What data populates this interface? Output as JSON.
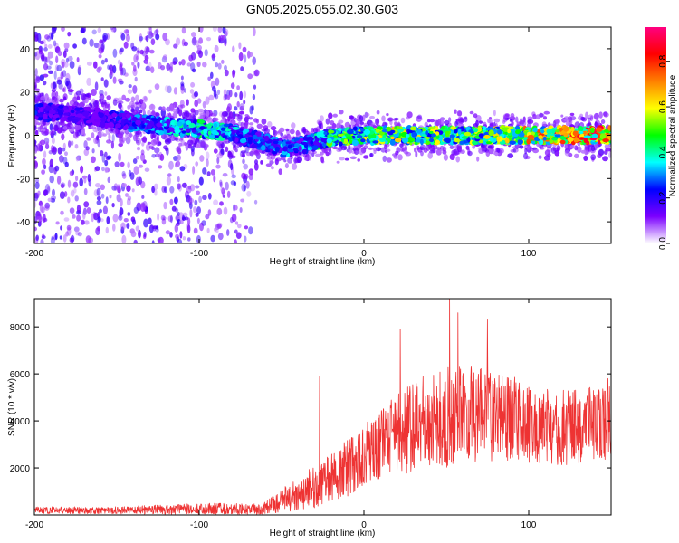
{
  "title": "GN05.2025.055.02.30.G03",
  "chart_data": [
    {
      "type": "heatmap",
      "id": "spectrogram",
      "title": "GN05.2025.055.02.30.G03",
      "xlabel": "Height of straight line (km)",
      "ylabel": "Frequency (Hz)",
      "xlim": [
        -200,
        150
      ],
      "ylim": [
        -50,
        50
      ],
      "xticks": [
        -200,
        -100,
        0,
        100
      ],
      "yticks": [
        -40,
        -20,
        0,
        20,
        40
      ],
      "colorbar": {
        "label": "Normalized spectral amplitude",
        "range": [
          0.0,
          0.95
        ],
        "ticks": [
          "0.0",
          "0.2",
          "0.4",
          "0.6",
          "0.8"
        ],
        "tick_values": [
          0.0,
          0.2,
          0.4,
          0.6,
          0.8
        ],
        "colors": [
          "#ffffff",
          "#7b00ff",
          "#0000ff",
          "#00ffff",
          "#00ff00",
          "#ffff00",
          "#ff8000",
          "#ff0000",
          "#ff0080"
        ]
      },
      "ridge": {
        "x": [
          -200,
          -180,
          -160,
          -140,
          -120,
          -100,
          -80,
          -60,
          -50,
          -40,
          -30,
          -20,
          0,
          20,
          50,
          80,
          100,
          120,
          150
        ],
        "freq": [
          11,
          10,
          8,
          6,
          4,
          3,
          1,
          -3,
          -6,
          -5,
          -3,
          -1,
          0,
          0,
          0,
          0,
          0,
          0,
          0
        ],
        "amplitude": [
          0.25,
          0.2,
          0.18,
          0.3,
          0.35,
          0.45,
          0.35,
          0.3,
          0.35,
          0.3,
          0.4,
          0.5,
          0.55,
          0.6,
          0.55,
          0.6,
          0.7,
          0.8,
          0.85
        ]
      },
      "scatter_region": {
        "x": [
          -200,
          -65
        ],
        "freq": [
          -50,
          50
        ],
        "amplitude": [
          0.05,
          0.2
        ]
      },
      "grid": false
    },
    {
      "type": "line",
      "id": "snr",
      "xlabel": "Height of straight line (km)",
      "ylabel": "SNR (10 * v/v)",
      "xlim": [
        -200,
        150
      ],
      "ylim": [
        0,
        9200
      ],
      "xticks": [
        -200,
        -100,
        0,
        100
      ],
      "yticks": [
        2000,
        4000,
        6000,
        8000
      ],
      "color": "#ee3333",
      "envelope": {
        "x": [
          -200,
          -150,
          -100,
          -70,
          -60,
          -50,
          -40,
          -30,
          -20,
          -10,
          0,
          10,
          20,
          30,
          40,
          50,
          60,
          70,
          80,
          90,
          100,
          110,
          120,
          130,
          140,
          150
        ],
        "mean": [
          200,
          200,
          250,
          250,
          300,
          600,
          900,
          1200,
          1600,
          2000,
          2500,
          3000,
          3400,
          3800,
          4000,
          4200,
          4300,
          4300,
          4200,
          4100,
          3900,
          3800,
          3700,
          3800,
          3900,
          4000
        ],
        "spread": [
          150,
          150,
          250,
          250,
          250,
          500,
          700,
          900,
          1000,
          1200,
          1300,
          1500,
          1700,
          2000,
          2100,
          2200,
          2100,
          2000,
          1900,
          1800,
          1700,
          1600,
          1600,
          1600,
          1600,
          1600
        ]
      },
      "spikes": [
        {
          "x": -27,
          "y": 5900
        },
        {
          "x": 22,
          "y": 7900
        },
        {
          "x": 52,
          "y": 9200
        },
        {
          "x": 57,
          "y": 8600
        },
        {
          "x": 75,
          "y": 8300
        },
        {
          "x": 148,
          "y": 5800
        }
      ],
      "grid": false
    }
  ]
}
